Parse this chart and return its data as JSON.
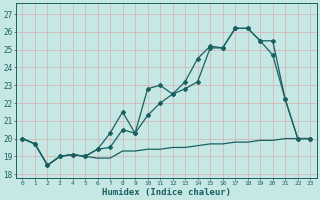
{
  "xlabel": "Humidex (Indice chaleur)",
  "bg_color": "#c5e8e5",
  "grid_color": "#d4b8b8",
  "line_color": "#1a6060",
  "xlim": [
    -0.5,
    23.5
  ],
  "ylim": [
    17.8,
    27.6
  ],
  "yticks": [
    18,
    19,
    20,
    21,
    22,
    23,
    24,
    25,
    26,
    27
  ],
  "xticks": [
    0,
    1,
    2,
    3,
    4,
    5,
    6,
    7,
    8,
    9,
    10,
    11,
    12,
    13,
    14,
    15,
    16,
    17,
    18,
    19,
    20,
    21,
    22,
    23
  ],
  "line1_x": [
    0,
    1,
    2,
    3,
    4,
    5,
    6,
    7,
    8,
    9,
    10,
    11,
    12,
    13,
    14,
    15,
    16,
    17,
    18,
    19,
    20,
    21,
    22,
    23
  ],
  "line1_y": [
    20.0,
    19.7,
    18.5,
    19.0,
    19.1,
    19.0,
    18.9,
    18.9,
    19.3,
    19.3,
    19.4,
    19.4,
    19.5,
    19.5,
    19.6,
    19.7,
    19.7,
    19.8,
    19.8,
    19.9,
    19.9,
    20.0,
    20.0,
    20.0
  ],
  "line2_x": [
    0,
    1,
    2,
    3,
    4,
    5,
    6,
    7,
    8,
    9,
    10,
    11,
    12,
    13,
    14,
    15,
    16,
    17,
    18,
    19,
    20,
    21,
    22,
    23
  ],
  "line2_y": [
    20.0,
    19.7,
    18.5,
    19.0,
    19.1,
    19.0,
    19.4,
    20.3,
    21.5,
    20.3,
    22.8,
    23.0,
    22.5,
    23.2,
    24.5,
    25.2,
    25.1,
    26.2,
    26.2,
    25.5,
    25.5,
    22.2,
    20.0,
    20.0
  ],
  "line3_x": [
    0,
    1,
    2,
    3,
    4,
    5,
    6,
    7,
    8,
    9,
    10,
    11,
    12,
    13,
    14,
    15,
    16,
    17,
    18,
    19,
    20,
    21,
    22,
    23
  ],
  "line3_y": [
    20.0,
    19.7,
    18.5,
    19.0,
    19.1,
    19.0,
    19.4,
    19.5,
    20.5,
    20.3,
    21.3,
    22.0,
    22.5,
    22.8,
    23.2,
    25.1,
    25.1,
    26.2,
    26.2,
    25.5,
    24.7,
    22.2,
    20.0,
    20.0
  ]
}
